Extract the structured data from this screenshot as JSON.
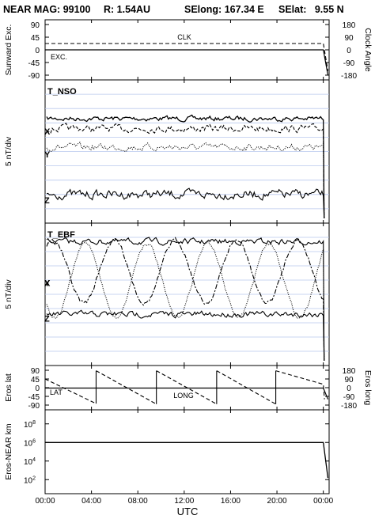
{
  "title": {
    "instrument": "NEAR MAG: 99100",
    "range": "R: 1.54AU",
    "selong": "SElong: 167.34 E",
    "selat": "SElat:   9.55 N"
  },
  "colors": {
    "trace": "#000000",
    "gridline": "#b9c8ee",
    "frame": "#000000"
  },
  "chart_data": [
    {
      "panel": "sunward-exc-clock",
      "type": "line",
      "x_ticks": [
        "00:00",
        "04:00",
        "08:00",
        "12:00",
        "16:00",
        "20:00",
        "00:00"
      ],
      "ylabel_left": "Sunward Exc.",
      "ylabel_right": "Clock Angle",
      "yticks_left": [
        "90",
        "45",
        "0",
        "-45",
        "-90"
      ],
      "yticks_right": [
        "180",
        "90",
        "0",
        "-90",
        "-180"
      ],
      "ylim_left": [
        -90,
        90
      ],
      "ylim_right": [
        -180,
        180
      ],
      "annotations": [
        "CLK",
        "EXC."
      ],
      "series": [
        {
          "name": "CLK",
          "style": "dashed",
          "values_approx": [
            {
              "t": 0,
              "v": 45
            },
            {
              "t": 24,
              "v": 45
            },
            {
              "t": 24.4,
              "v": -150
            }
          ]
        },
        {
          "name": "EXC.",
          "style": "solid",
          "values_approx": [
            {
              "t": 0,
              "v": 0
            },
            {
              "t": 24,
              "v": 0
            },
            {
              "t": 24.4,
              "v": -90
            }
          ]
        }
      ]
    },
    {
      "panel": "T_NSO",
      "type": "line",
      "label": "T_NSO",
      "ylabel": "5 nT/div",
      "series": [
        {
          "name": "T",
          "style": "solid"
        },
        {
          "name": "X",
          "style": "dashed"
        },
        {
          "name": "Y",
          "style": "dotted"
        },
        {
          "name": "Z",
          "style": "solid"
        }
      ]
    },
    {
      "panel": "T_EBF",
      "type": "line",
      "label": "T_EBF",
      "ylabel": "5 nT/div",
      "series": [
        {
          "name": "T",
          "style": "solid"
        },
        {
          "name": "X",
          "style": "dashdot",
          "period_hours_approx": 5.3
        },
        {
          "name": "Y",
          "style": "dotted",
          "period_hours_approx": 5.3
        },
        {
          "name": "Z",
          "style": "solid"
        }
      ]
    },
    {
      "panel": "eros-lat-long",
      "type": "line",
      "ylabel_left": "Eros lat",
      "ylabel_right": "Eros long",
      "yticks_left": [
        "90",
        "45",
        "0",
        "-45",
        "-90"
      ],
      "yticks_right": [
        "180",
        "90",
        "0",
        "-90",
        "-180"
      ],
      "ylim_left": [
        -90,
        90
      ],
      "ylim_right": [
        -180,
        180
      ],
      "annotations": [
        "LAT",
        "LONG"
      ],
      "series": [
        {
          "name": "LAT",
          "style": "solid",
          "values_approx": [
            {
              "t": 0,
              "v": -2
            },
            {
              "t": 24,
              "v": -2
            },
            {
              "t": 24.4,
              "v": -60
            }
          ]
        },
        {
          "name": "LONG",
          "style": "dashed",
          "sawtooth_wrap_hours_approx": [
            4.4,
            9.6,
            14.8,
            19.9
          ],
          "values_approx": [
            {
              "t": 0,
              "v": 90
            },
            {
              "t": 4.4,
              "v": -165
            },
            {
              "t": 4.4,
              "v": 175
            },
            {
              "t": 9.6,
              "v": -170
            },
            {
              "t": 9.6,
              "v": 175
            },
            {
              "t": 14.8,
              "v": -170
            },
            {
              "t": 14.8,
              "v": 175
            },
            {
              "t": 19.9,
              "v": -170
            },
            {
              "t": 19.9,
              "v": 175
            },
            {
              "t": 24,
              "v": 35
            }
          ]
        }
      ]
    },
    {
      "panel": "eros-near-km",
      "type": "line",
      "ylabel": "Eros-NEAR km",
      "yscale": "log",
      "yticks": [
        "10^8",
        "10^6",
        "10^4",
        "10^2"
      ],
      "ylim": [
        10,
        100000000
      ],
      "series": [
        {
          "name": "range",
          "style": "solid",
          "values_approx": [
            {
              "t": 0,
              "v": 1000000
            },
            {
              "t": 24,
              "v": 1000000
            },
            {
              "t": 24.4,
              "v": 150
            }
          ]
        }
      ]
    }
  ],
  "x_axis": {
    "label": "UTC",
    "ticks": [
      "00:00",
      "04:00",
      "08:00",
      "12:00",
      "16:00",
      "20:00",
      "00:00"
    ],
    "range_hours": [
      0,
      24.5
    ]
  }
}
